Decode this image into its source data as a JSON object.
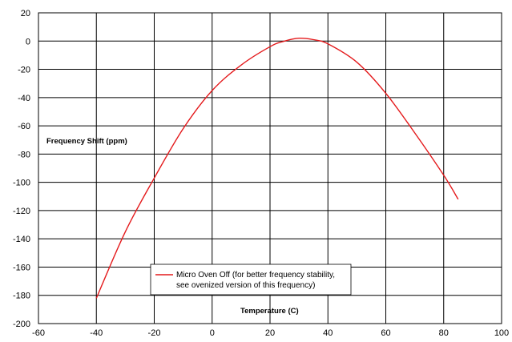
{
  "chart_data": {
    "type": "line",
    "title": "",
    "xlabel": "Temperature (C)",
    "ylabel": "Frequency Shift (ppm)",
    "xlim": [
      -60,
      100
    ],
    "ylim": [
      -200,
      20
    ],
    "x_ticks": [
      "-60",
      "-40",
      "-20",
      "0",
      "20",
      "40",
      "60",
      "80",
      "100"
    ],
    "y_ticks": [
      "20",
      "0",
      "-20",
      "-40",
      "-60",
      "-80",
      "-100",
      "-120",
      "-140",
      "-160",
      "-180",
      "-200"
    ],
    "grid": true,
    "legend_position": "lower-center",
    "series": [
      {
        "name_lines": [
          "Micro Oven Off (for better frequency stability,",
          "see ovenized version of this frequency)"
        ],
        "color": "#e41a1c",
        "x": [
          -40,
          -30,
          -20,
          -10,
          0,
          10,
          20,
          25,
          30,
          35,
          40,
          50,
          60,
          70,
          80,
          85
        ],
        "y": [
          -182,
          -135,
          -97,
          -62,
          -35,
          -17,
          -4,
          0,
          2,
          1,
          -2,
          -15,
          -37,
          -65,
          -95,
          -112
        ]
      }
    ]
  }
}
